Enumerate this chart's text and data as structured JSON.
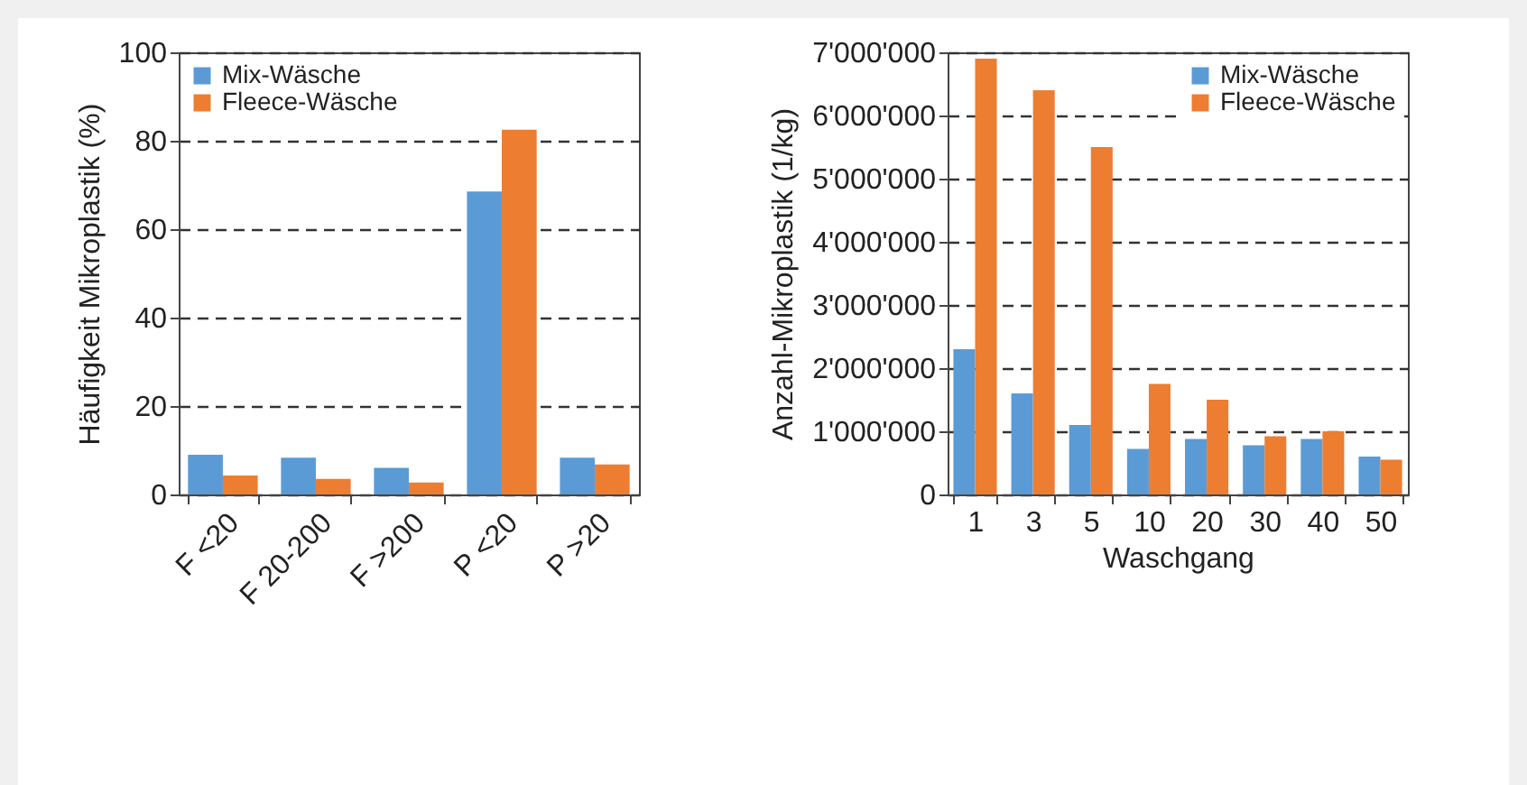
{
  "chart_data": [
    {
      "type": "bar",
      "ylabel": "Häufigkeit Mikroplastik (%)",
      "categories": [
        "F <20",
        "F 20-200",
        "F >200",
        "P <20",
        "P >20"
      ],
      "series": [
        {
          "name": "Mix-Wäsche",
          "color": "#5b9bd5",
          "values": [
            9,
            8.3,
            6,
            68.5,
            8.3
          ]
        },
        {
          "name": "Fleece-Wäsche",
          "color": "#ed7d31",
          "values": [
            4.3,
            3.5,
            2.7,
            82.5,
            6.8
          ]
        }
      ],
      "ylim": [
        0,
        100
      ],
      "yticks": [
        0,
        20,
        40,
        60,
        80,
        100
      ],
      "grid": "y",
      "legend": "top left"
    },
    {
      "type": "bar",
      "xlabel": "Waschgang",
      "ylabel": "Anzahl-Mikroplastik (1/kg)",
      "categories": [
        "1",
        "3",
        "5",
        "10",
        "20",
        "30",
        "40",
        "50"
      ],
      "series": [
        {
          "name": "Mix-Wäsche",
          "color": "#5b9bd5",
          "values": [
            2300000,
            1600000,
            1100000,
            720000,
            880000,
            780000,
            880000,
            600000
          ]
        },
        {
          "name": "Fleece-Wäsche",
          "color": "#ed7d31",
          "values": [
            6900000,
            6400000,
            5500000,
            1750000,
            1500000,
            920000,
            1000000,
            550000
          ]
        }
      ],
      "ylim": [
        0,
        7000000
      ],
      "yticks": [
        0,
        {
          "value": 1000000,
          "label": "1'000'000"
        },
        {
          "value": 2000000,
          "label": "2'000'000"
        },
        {
          "value": 3000000,
          "label": "3'000'000"
        },
        {
          "value": 4000000,
          "label": "4'000'000"
        },
        {
          "value": 5000000,
          "label": "5'000'000"
        },
        {
          "value": 6000000,
          "label": "6'000'000"
        },
        {
          "value": 7000000,
          "label": "7'000'000"
        }
      ],
      "grid": "y",
      "legend": "top right"
    }
  ]
}
